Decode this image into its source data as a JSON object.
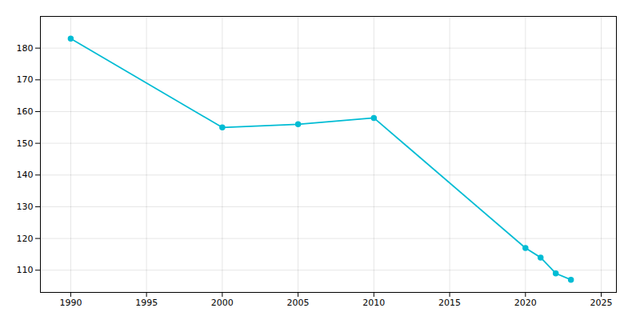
{
  "chart_data": {
    "type": "line",
    "x": [
      1990,
      2000,
      2005,
      2010,
      2020,
      2021,
      2022,
      2023
    ],
    "values": [
      183,
      155,
      156,
      158,
      117,
      114,
      109,
      107
    ],
    "color": "#00bcd4",
    "marker": "o",
    "xlim": [
      1988,
      2026
    ],
    "ylim": [
      103,
      190
    ],
    "xticks": [
      1990,
      1995,
      2000,
      2005,
      2010,
      2015,
      2020,
      2025
    ],
    "yticks": [
      110,
      120,
      130,
      140,
      150,
      160,
      170,
      180
    ],
    "grid": true
  }
}
